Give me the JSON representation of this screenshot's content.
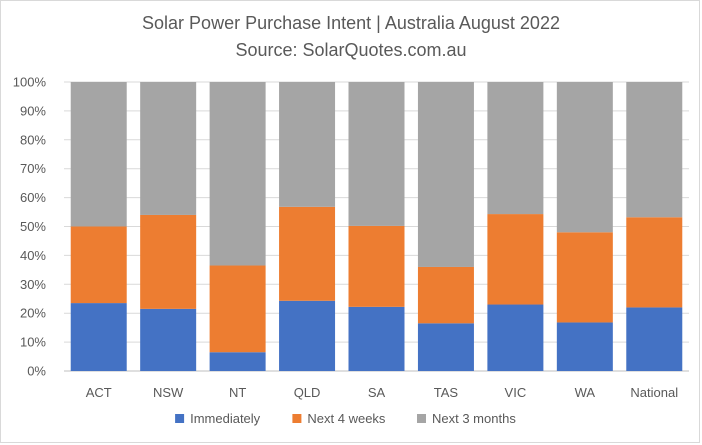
{
  "chart_data": {
    "type": "bar",
    "stacked": true,
    "title": "Solar Power Purchase Intent | Australia August 2022",
    "subtitle": "Source: SolarQuotes.com.au",
    "categories": [
      "ACT",
      "NSW",
      "NT",
      "QLD",
      "SA",
      "TAS",
      "VIC",
      "WA",
      "National"
    ],
    "series": [
      {
        "name": "Immediately",
        "color": "#4472C4",
        "values": [
          23.5,
          21.5,
          6.5,
          24.3,
          22.2,
          16.5,
          23.0,
          16.8,
          22.0
        ]
      },
      {
        "name": "Next 4 weeks",
        "color": "#ED7D31",
        "values": [
          26.5,
          32.5,
          30.0,
          32.5,
          28.0,
          19.5,
          31.3,
          31.2,
          31.2
        ]
      },
      {
        "name": "Next 3 months",
        "color": "#A5A5A5",
        "values": [
          50.0,
          46.0,
          63.5,
          43.2,
          49.8,
          64.0,
          45.7,
          52.0,
          46.8
        ]
      }
    ],
    "ylim": [
      0,
      100
    ],
    "yticks": [
      "0%",
      "10%",
      "20%",
      "30%",
      "40%",
      "50%",
      "60%",
      "70%",
      "80%",
      "90%",
      "100%"
    ],
    "ytick_values": [
      0,
      10,
      20,
      30,
      40,
      50,
      60,
      70,
      80,
      90,
      100
    ],
    "grid": true,
    "legend_position": "bottom",
    "gridline_color": "#D9D9D9",
    "text_color": "#595959"
  }
}
